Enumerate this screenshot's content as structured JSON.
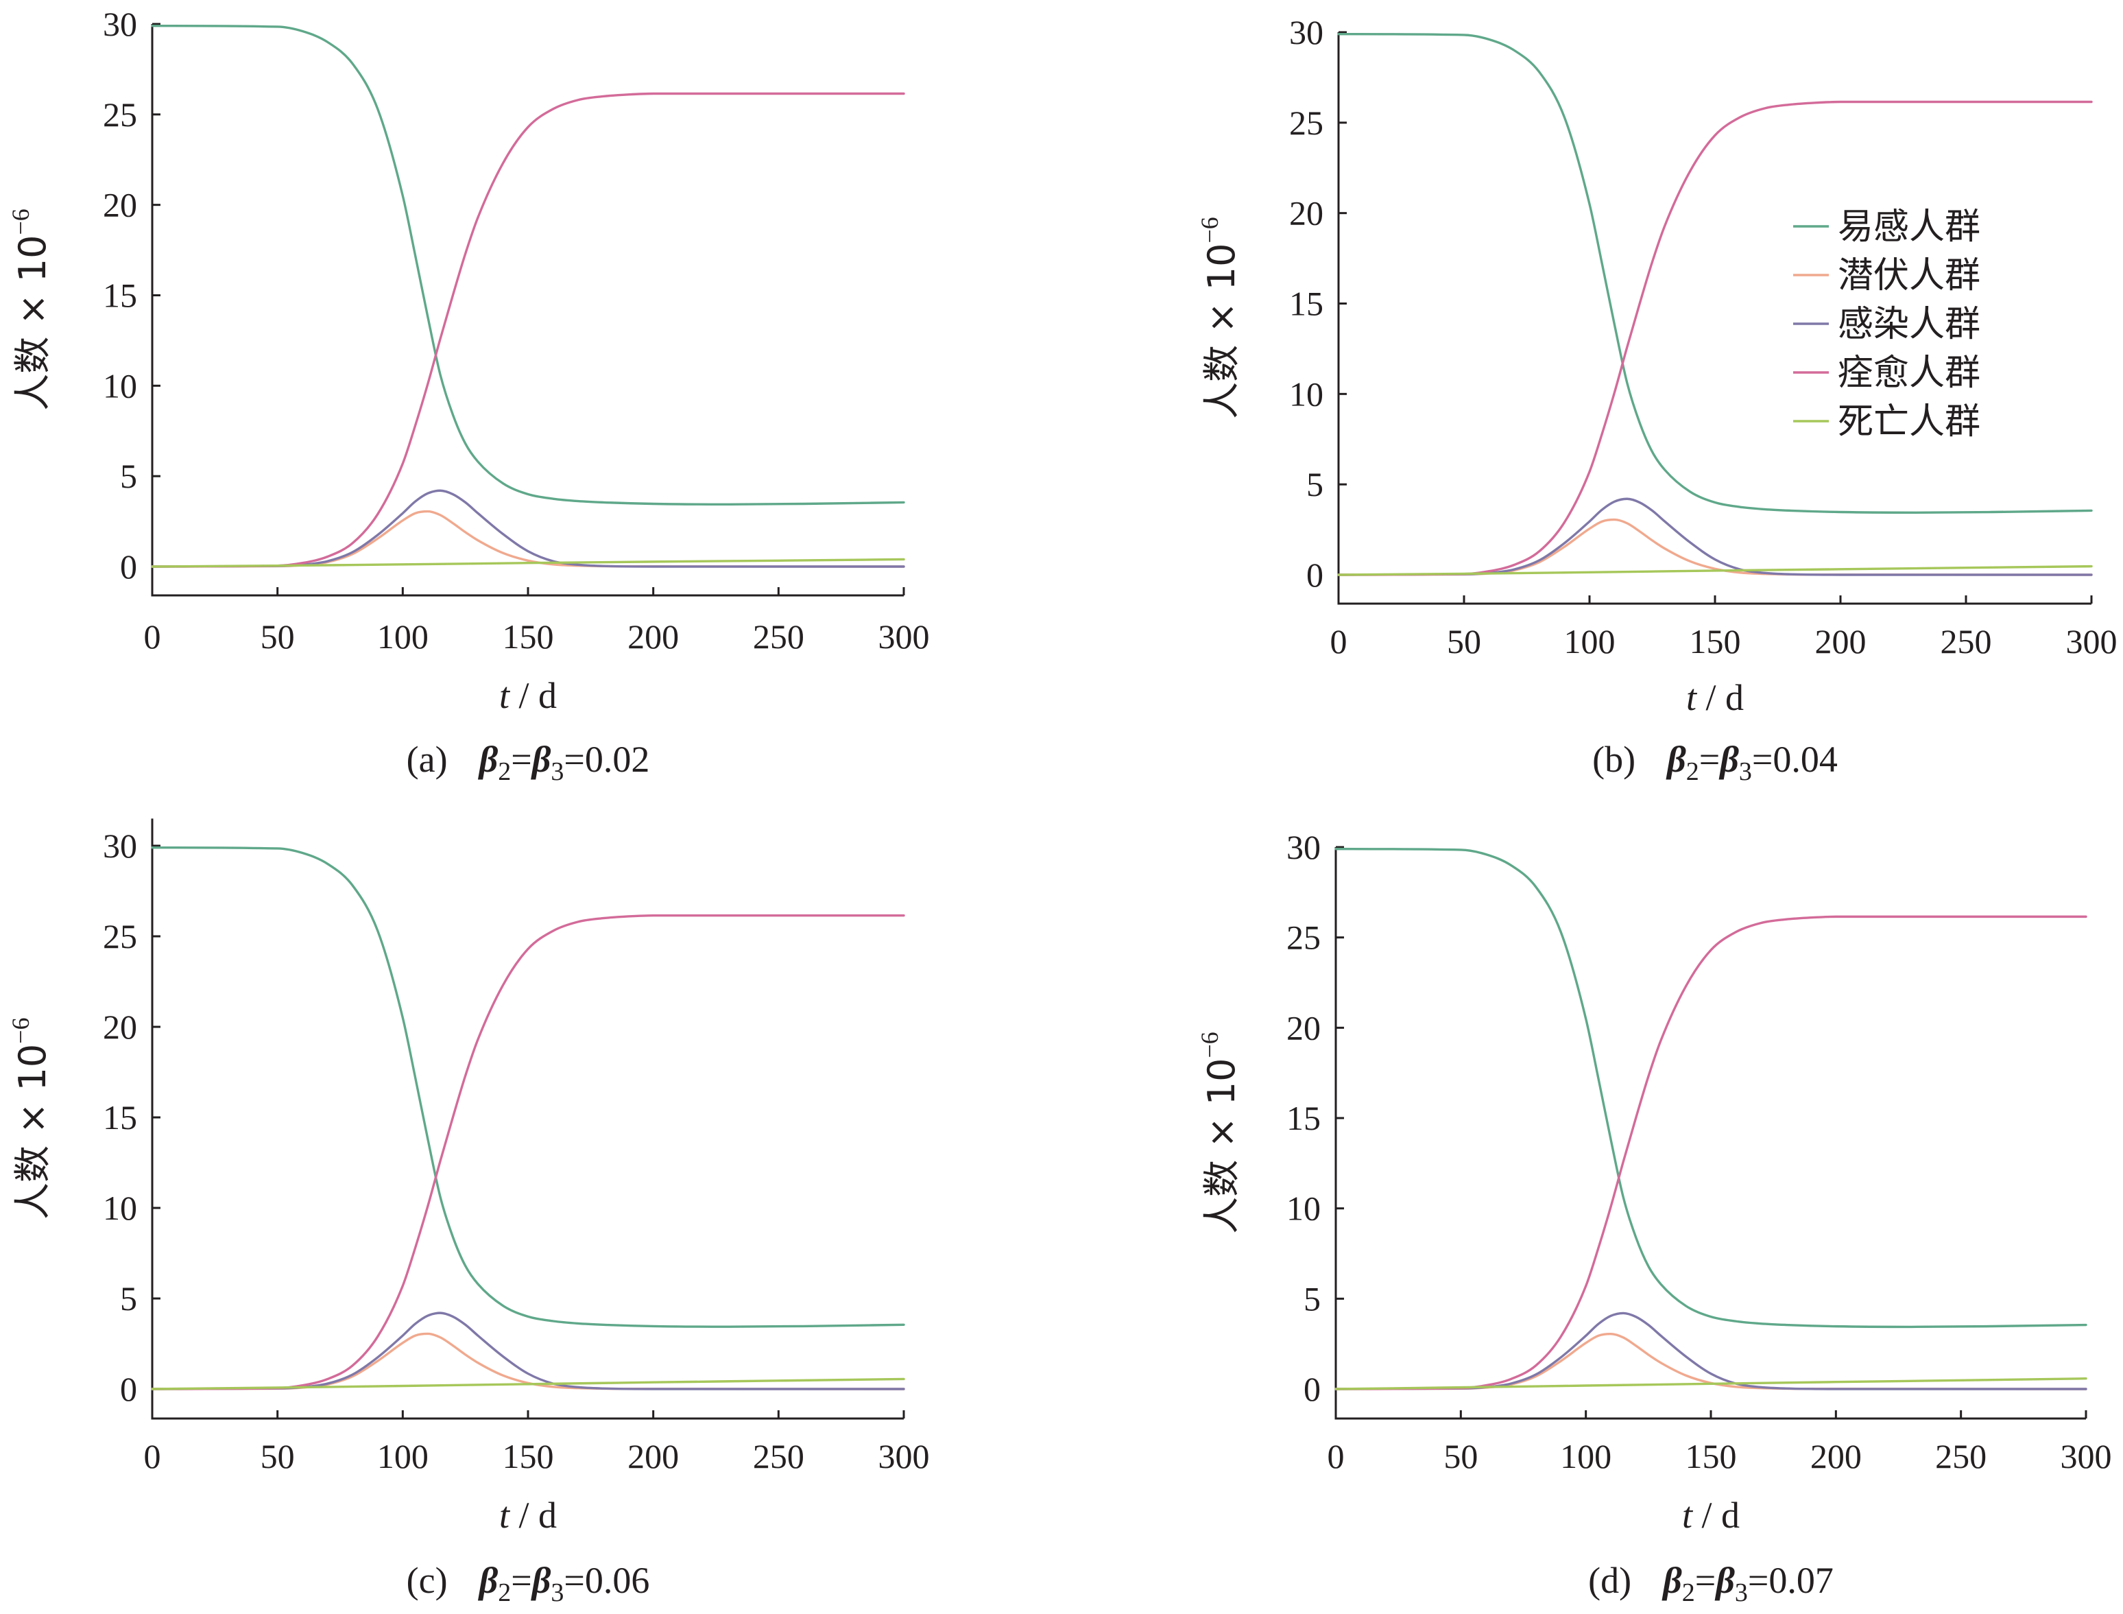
{
  "chart_data": [
    {
      "type": "line",
      "caption": "(a)  β2=β3=0.02",
      "caption_parts": {
        "label": "(a)",
        "beta_a": "β",
        "sub_a": "2",
        "eq1": "=",
        "beta_b": "β",
        "sub_b": "3",
        "value": "=0.02"
      },
      "xlabel": {
        "var": "t",
        "unit": " / d"
      },
      "ylabel": {
        "text": "人数 × 10",
        "exp": "−6"
      },
      "xlim": [
        0,
        300
      ],
      "ylim": [
        -1.5,
        30
      ],
      "xticks": [
        0,
        50,
        100,
        150,
        200,
        250,
        300
      ],
      "yticks": [
        0,
        5,
        10,
        15,
        20,
        25,
        30
      ],
      "legend": null,
      "series": [
        {
          "name": "易感人群",
          "color": "#5fa88a",
          "x": [
            0,
            50,
            60,
            70,
            80,
            90,
            100,
            105,
            110,
            115,
            120,
            125,
            130,
            140,
            150,
            160,
            170,
            180,
            200,
            230,
            260,
            300
          ],
          "y": [
            29.9,
            29.85,
            29.6,
            29.0,
            27.8,
            25.3,
            20.5,
            17.2,
            13.8,
            10.6,
            8.4,
            6.8,
            5.8,
            4.6,
            4.0,
            3.75,
            3.62,
            3.55,
            3.47,
            3.44,
            3.47,
            3.55
          ]
        },
        {
          "name": "潜伏人群",
          "color": "#f0a98e",
          "x": [
            0,
            50,
            60,
            70,
            80,
            90,
            100,
            105,
            110,
            115,
            120,
            125,
            130,
            140,
            150,
            160,
            170,
            190,
            300
          ],
          "y": [
            0,
            0.02,
            0.08,
            0.25,
            0.7,
            1.55,
            2.55,
            2.95,
            3.05,
            2.85,
            2.4,
            1.9,
            1.45,
            0.75,
            0.33,
            0.12,
            0.05,
            0.01,
            0
          ]
        },
        {
          "name": "感染人群",
          "color": "#7f78a8",
          "x": [
            0,
            50,
            60,
            70,
            80,
            90,
            100,
            105,
            110,
            115,
            120,
            125,
            130,
            140,
            150,
            160,
            170,
            180,
            200,
            300
          ],
          "y": [
            0,
            0.03,
            0.1,
            0.3,
            0.8,
            1.75,
            2.95,
            3.6,
            4.05,
            4.2,
            4.0,
            3.55,
            2.95,
            1.8,
            0.85,
            0.3,
            0.1,
            0.03,
            0,
            0
          ]
        },
        {
          "name": "痊愈人群",
          "color": "#d36b99",
          "x": [
            0,
            50,
            60,
            70,
            80,
            90,
            100,
            105,
            110,
            115,
            120,
            125,
            130,
            140,
            150,
            160,
            170,
            180,
            190,
            200,
            220,
            300
          ],
          "y": [
            0,
            0.05,
            0.2,
            0.55,
            1.3,
            2.9,
            5.7,
            7.8,
            10.1,
            12.6,
            15.0,
            17.3,
            19.3,
            22.3,
            24.3,
            25.3,
            25.8,
            26.0,
            26.1,
            26.15,
            26.15,
            26.15
          ]
        },
        {
          "name": "死亡人群",
          "color": "#a6c75a",
          "x": [
            0,
            50,
            100,
            150,
            200,
            250,
            300
          ],
          "y": [
            0,
            0.05,
            0.12,
            0.2,
            0.27,
            0.33,
            0.4
          ]
        }
      ]
    },
    {
      "type": "line",
      "caption": "(b)  β2=β3=0.04",
      "caption_parts": {
        "label": "(b)",
        "beta_a": "β",
        "sub_a": "2",
        "eq1": "=",
        "beta_b": "β",
        "sub_b": "3",
        "value": "=0.04"
      },
      "xlabel": {
        "var": "t",
        "unit": " / d"
      },
      "ylabel": {
        "text": "人数 × 10",
        "exp": "−6"
      },
      "xlim": [
        0,
        300
      ],
      "ylim": [
        -1.5,
        30
      ],
      "xticks": [
        0,
        50,
        100,
        150,
        200,
        250,
        300
      ],
      "yticks": [
        0,
        5,
        10,
        15,
        20,
        25,
        30
      ],
      "legend": {
        "position": "center-right",
        "entries": [
          "易感人群",
          "潜伏人群",
          "感染人群",
          "痊愈人群",
          "死亡人群"
        ]
      },
      "series": [
        {
          "name": "易感人群",
          "color": "#5fa88a",
          "x": [
            0,
            50,
            60,
            70,
            80,
            90,
            100,
            105,
            110,
            115,
            120,
            125,
            130,
            140,
            150,
            160,
            170,
            180,
            200,
            230,
            260,
            300
          ],
          "y": [
            29.9,
            29.85,
            29.6,
            29.0,
            27.8,
            25.3,
            20.5,
            17.2,
            13.8,
            10.6,
            8.4,
            6.8,
            5.8,
            4.6,
            4.0,
            3.75,
            3.62,
            3.55,
            3.47,
            3.44,
            3.47,
            3.55
          ]
        },
        {
          "name": "潜伏人群",
          "color": "#f0a98e",
          "x": [
            0,
            50,
            60,
            70,
            80,
            90,
            100,
            105,
            110,
            115,
            120,
            125,
            130,
            140,
            150,
            160,
            170,
            190,
            300
          ],
          "y": [
            0,
            0.02,
            0.08,
            0.25,
            0.7,
            1.55,
            2.55,
            2.95,
            3.05,
            2.85,
            2.4,
            1.9,
            1.45,
            0.75,
            0.33,
            0.12,
            0.05,
            0.01,
            0
          ]
        },
        {
          "name": "感染人群",
          "color": "#7f78a8",
          "x": [
            0,
            50,
            60,
            70,
            80,
            90,
            100,
            105,
            110,
            115,
            120,
            125,
            130,
            140,
            150,
            160,
            170,
            180,
            200,
            300
          ],
          "y": [
            0,
            0.03,
            0.1,
            0.3,
            0.8,
            1.75,
            2.95,
            3.6,
            4.05,
            4.2,
            4.0,
            3.55,
            2.95,
            1.8,
            0.85,
            0.3,
            0.1,
            0.03,
            0,
            0
          ]
        },
        {
          "name": "痊愈人群",
          "color": "#d36b99",
          "x": [
            0,
            50,
            60,
            70,
            80,
            90,
            100,
            105,
            110,
            115,
            120,
            125,
            130,
            140,
            150,
            160,
            170,
            180,
            190,
            200,
            220,
            300
          ],
          "y": [
            0,
            0.05,
            0.2,
            0.55,
            1.3,
            2.9,
            5.7,
            7.8,
            10.1,
            12.6,
            15.0,
            17.3,
            19.3,
            22.3,
            24.3,
            25.3,
            25.8,
            26.0,
            26.1,
            26.15,
            26.15,
            26.15
          ]
        },
        {
          "name": "死亡人群",
          "color": "#a6c75a",
          "x": [
            0,
            50,
            100,
            150,
            200,
            250,
            300
          ],
          "y": [
            0,
            0.06,
            0.14,
            0.23,
            0.31,
            0.39,
            0.47
          ]
        }
      ]
    },
    {
      "type": "line",
      "caption": "(c)  β2=β3=0.06",
      "caption_parts": {
        "label": "(c)",
        "beta_a": "β",
        "sub_a": "2",
        "eq1": "=",
        "beta_b": "β",
        "sub_b": "3",
        "value": "=0.06"
      },
      "xlabel": {
        "var": "t",
        "unit": " / d"
      },
      "ylabel": {
        "text": "人数 × 10",
        "exp": "−6"
      },
      "xlim": [
        0,
        300
      ],
      "ylim": [
        -1.5,
        31.5
      ],
      "xticks": [
        0,
        50,
        100,
        150,
        200,
        250,
        300
      ],
      "yticks": [
        0,
        5,
        10,
        15,
        20,
        25,
        30
      ],
      "legend": null,
      "series": [
        {
          "name": "易感人群",
          "color": "#5fa88a",
          "x": [
            0,
            50,
            60,
            70,
            80,
            90,
            100,
            105,
            110,
            115,
            120,
            125,
            130,
            140,
            150,
            160,
            170,
            180,
            200,
            230,
            260,
            300
          ],
          "y": [
            29.9,
            29.85,
            29.6,
            29.0,
            27.8,
            25.3,
            20.5,
            17.2,
            13.8,
            10.6,
            8.4,
            6.8,
            5.8,
            4.6,
            4.0,
            3.75,
            3.62,
            3.55,
            3.47,
            3.44,
            3.47,
            3.55
          ]
        },
        {
          "name": "潜伏人群",
          "color": "#f0a98e",
          "x": [
            0,
            50,
            60,
            70,
            80,
            90,
            100,
            105,
            110,
            115,
            120,
            125,
            130,
            140,
            150,
            160,
            170,
            190,
            300
          ],
          "y": [
            0,
            0.02,
            0.08,
            0.25,
            0.7,
            1.55,
            2.55,
            2.95,
            3.05,
            2.85,
            2.4,
            1.9,
            1.45,
            0.75,
            0.33,
            0.12,
            0.05,
            0.01,
            0
          ]
        },
        {
          "name": "感染人群",
          "color": "#7f78a8",
          "x": [
            0,
            50,
            60,
            70,
            80,
            90,
            100,
            105,
            110,
            115,
            120,
            125,
            130,
            140,
            150,
            160,
            170,
            180,
            200,
            300
          ],
          "y": [
            0,
            0.03,
            0.1,
            0.3,
            0.8,
            1.75,
            2.95,
            3.6,
            4.05,
            4.2,
            4.0,
            3.55,
            2.95,
            1.8,
            0.85,
            0.3,
            0.1,
            0.03,
            0,
            0
          ]
        },
        {
          "name": "痊愈人群",
          "color": "#d36b99",
          "x": [
            0,
            50,
            60,
            70,
            80,
            90,
            100,
            105,
            110,
            115,
            120,
            125,
            130,
            140,
            150,
            160,
            170,
            180,
            190,
            200,
            220,
            300
          ],
          "y": [
            0,
            0.05,
            0.2,
            0.55,
            1.3,
            2.9,
            5.7,
            7.8,
            10.1,
            12.6,
            15.0,
            17.3,
            19.3,
            22.3,
            24.3,
            25.3,
            25.8,
            26.0,
            26.1,
            26.15,
            26.15,
            26.15
          ]
        },
        {
          "name": "死亡人群",
          "color": "#a6c75a",
          "x": [
            0,
            50,
            100,
            150,
            200,
            250,
            300
          ],
          "y": [
            0,
            0.08,
            0.17,
            0.27,
            0.37,
            0.46,
            0.55
          ]
        }
      ]
    },
    {
      "type": "line",
      "caption": "(d)  β2=β3=0.07",
      "caption_parts": {
        "label": "(d)",
        "beta_a": "β",
        "sub_a": "2",
        "eq1": "=",
        "beta_b": "β",
        "sub_b": "3",
        "value": "=0.07"
      },
      "xlabel": {
        "var": "t",
        "unit": " / d"
      },
      "ylabel": {
        "text": "人数 × 10",
        "exp": "−6"
      },
      "xlim": [
        0,
        300
      ],
      "ylim": [
        -1.5,
        30
      ],
      "xticks": [
        0,
        50,
        100,
        150,
        200,
        250,
        300
      ],
      "yticks": [
        0,
        5,
        10,
        15,
        20,
        25,
        30
      ],
      "legend": null,
      "series": [
        {
          "name": "易感人群",
          "color": "#5fa88a",
          "x": [
            0,
            50,
            60,
            70,
            80,
            90,
            100,
            105,
            110,
            115,
            120,
            125,
            130,
            140,
            150,
            160,
            170,
            180,
            200,
            230,
            260,
            300
          ],
          "y": [
            29.9,
            29.85,
            29.6,
            29.0,
            27.8,
            25.3,
            20.5,
            17.2,
            13.8,
            10.6,
            8.4,
            6.8,
            5.8,
            4.6,
            4.0,
            3.75,
            3.62,
            3.55,
            3.47,
            3.44,
            3.47,
            3.55
          ]
        },
        {
          "name": "潜伏人群",
          "color": "#f0a98e",
          "x": [
            0,
            50,
            60,
            70,
            80,
            90,
            100,
            105,
            110,
            115,
            120,
            125,
            130,
            140,
            150,
            160,
            170,
            190,
            300
          ],
          "y": [
            0,
            0.02,
            0.08,
            0.25,
            0.7,
            1.55,
            2.55,
            2.95,
            3.05,
            2.85,
            2.4,
            1.9,
            1.45,
            0.75,
            0.33,
            0.12,
            0.05,
            0.01,
            0
          ]
        },
        {
          "name": "感染人群",
          "color": "#7f78a8",
          "x": [
            0,
            50,
            60,
            70,
            80,
            90,
            100,
            105,
            110,
            115,
            120,
            125,
            130,
            140,
            150,
            160,
            170,
            180,
            200,
            300
          ],
          "y": [
            0,
            0.03,
            0.1,
            0.3,
            0.8,
            1.75,
            2.95,
            3.6,
            4.05,
            4.2,
            4.0,
            3.55,
            2.95,
            1.8,
            0.85,
            0.3,
            0.1,
            0.03,
            0,
            0
          ]
        },
        {
          "name": "痊愈人群",
          "color": "#d36b99",
          "x": [
            0,
            50,
            60,
            70,
            80,
            90,
            100,
            105,
            110,
            115,
            120,
            125,
            130,
            140,
            150,
            160,
            170,
            180,
            190,
            200,
            220,
            300
          ],
          "y": [
            0,
            0.05,
            0.2,
            0.55,
            1.3,
            2.9,
            5.7,
            7.8,
            10.1,
            12.6,
            15.0,
            17.3,
            19.3,
            22.3,
            24.3,
            25.3,
            25.8,
            26.0,
            26.1,
            26.15,
            26.15,
            26.15
          ]
        },
        {
          "name": "死亡人群",
          "color": "#a6c75a",
          "x": [
            0,
            50,
            100,
            150,
            200,
            250,
            300
          ],
          "y": [
            0,
            0.09,
            0.19,
            0.29,
            0.39,
            0.48,
            0.58
          ]
        }
      ]
    }
  ]
}
